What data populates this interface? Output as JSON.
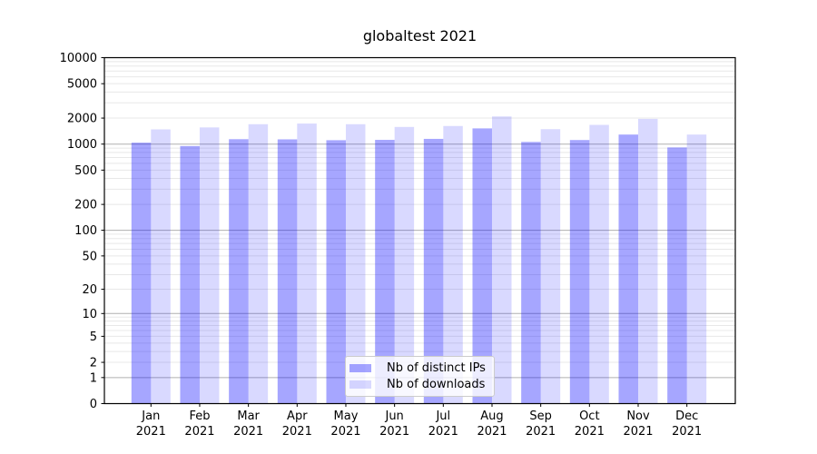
{
  "chart_data": {
    "type": "bar",
    "title": "globaltest 2021",
    "categories": [
      "Jan\n2021",
      "Feb\n2021",
      "Mar\n2021",
      "Apr\n2021",
      "May\n2021",
      "Jun\n2021",
      "Jul\n2021",
      "Aug\n2021",
      "Sep\n2021",
      "Oct\n2021",
      "Nov\n2021",
      "Dec\n2021"
    ],
    "series": [
      {
        "name": "Nb of distinct IPs",
        "color": "rgba(0,0,255,0.35)",
        "values": [
          1040,
          950,
          1140,
          1135,
          1110,
          1120,
          1150,
          1520,
          1060,
          1115,
          1290,
          915
        ]
      },
      {
        "name": "Nb of downloads",
        "color": "rgba(0,0,255,0.15)",
        "values": [
          1480,
          1560,
          1700,
          1730,
          1700,
          1580,
          1620,
          2090,
          1490,
          1670,
          1960,
          1290
        ]
      }
    ],
    "xlabel": "",
    "ylabel": "",
    "y_scale": "log(1+x)",
    "ylim": [
      0,
      10000
    ],
    "y_ticks": [
      0,
      1,
      2,
      5,
      10,
      20,
      50,
      100,
      200,
      500,
      1000,
      2000,
      5000,
      10000
    ],
    "grid": {
      "major_ticks": [
        1,
        10,
        100,
        1000,
        10000
      ],
      "major_color": "#b0b0b0",
      "minor_color": "#e8e8e8"
    },
    "legend_position": "lower center",
    "axis_color": "#000000",
    "background": "#ffffff"
  }
}
